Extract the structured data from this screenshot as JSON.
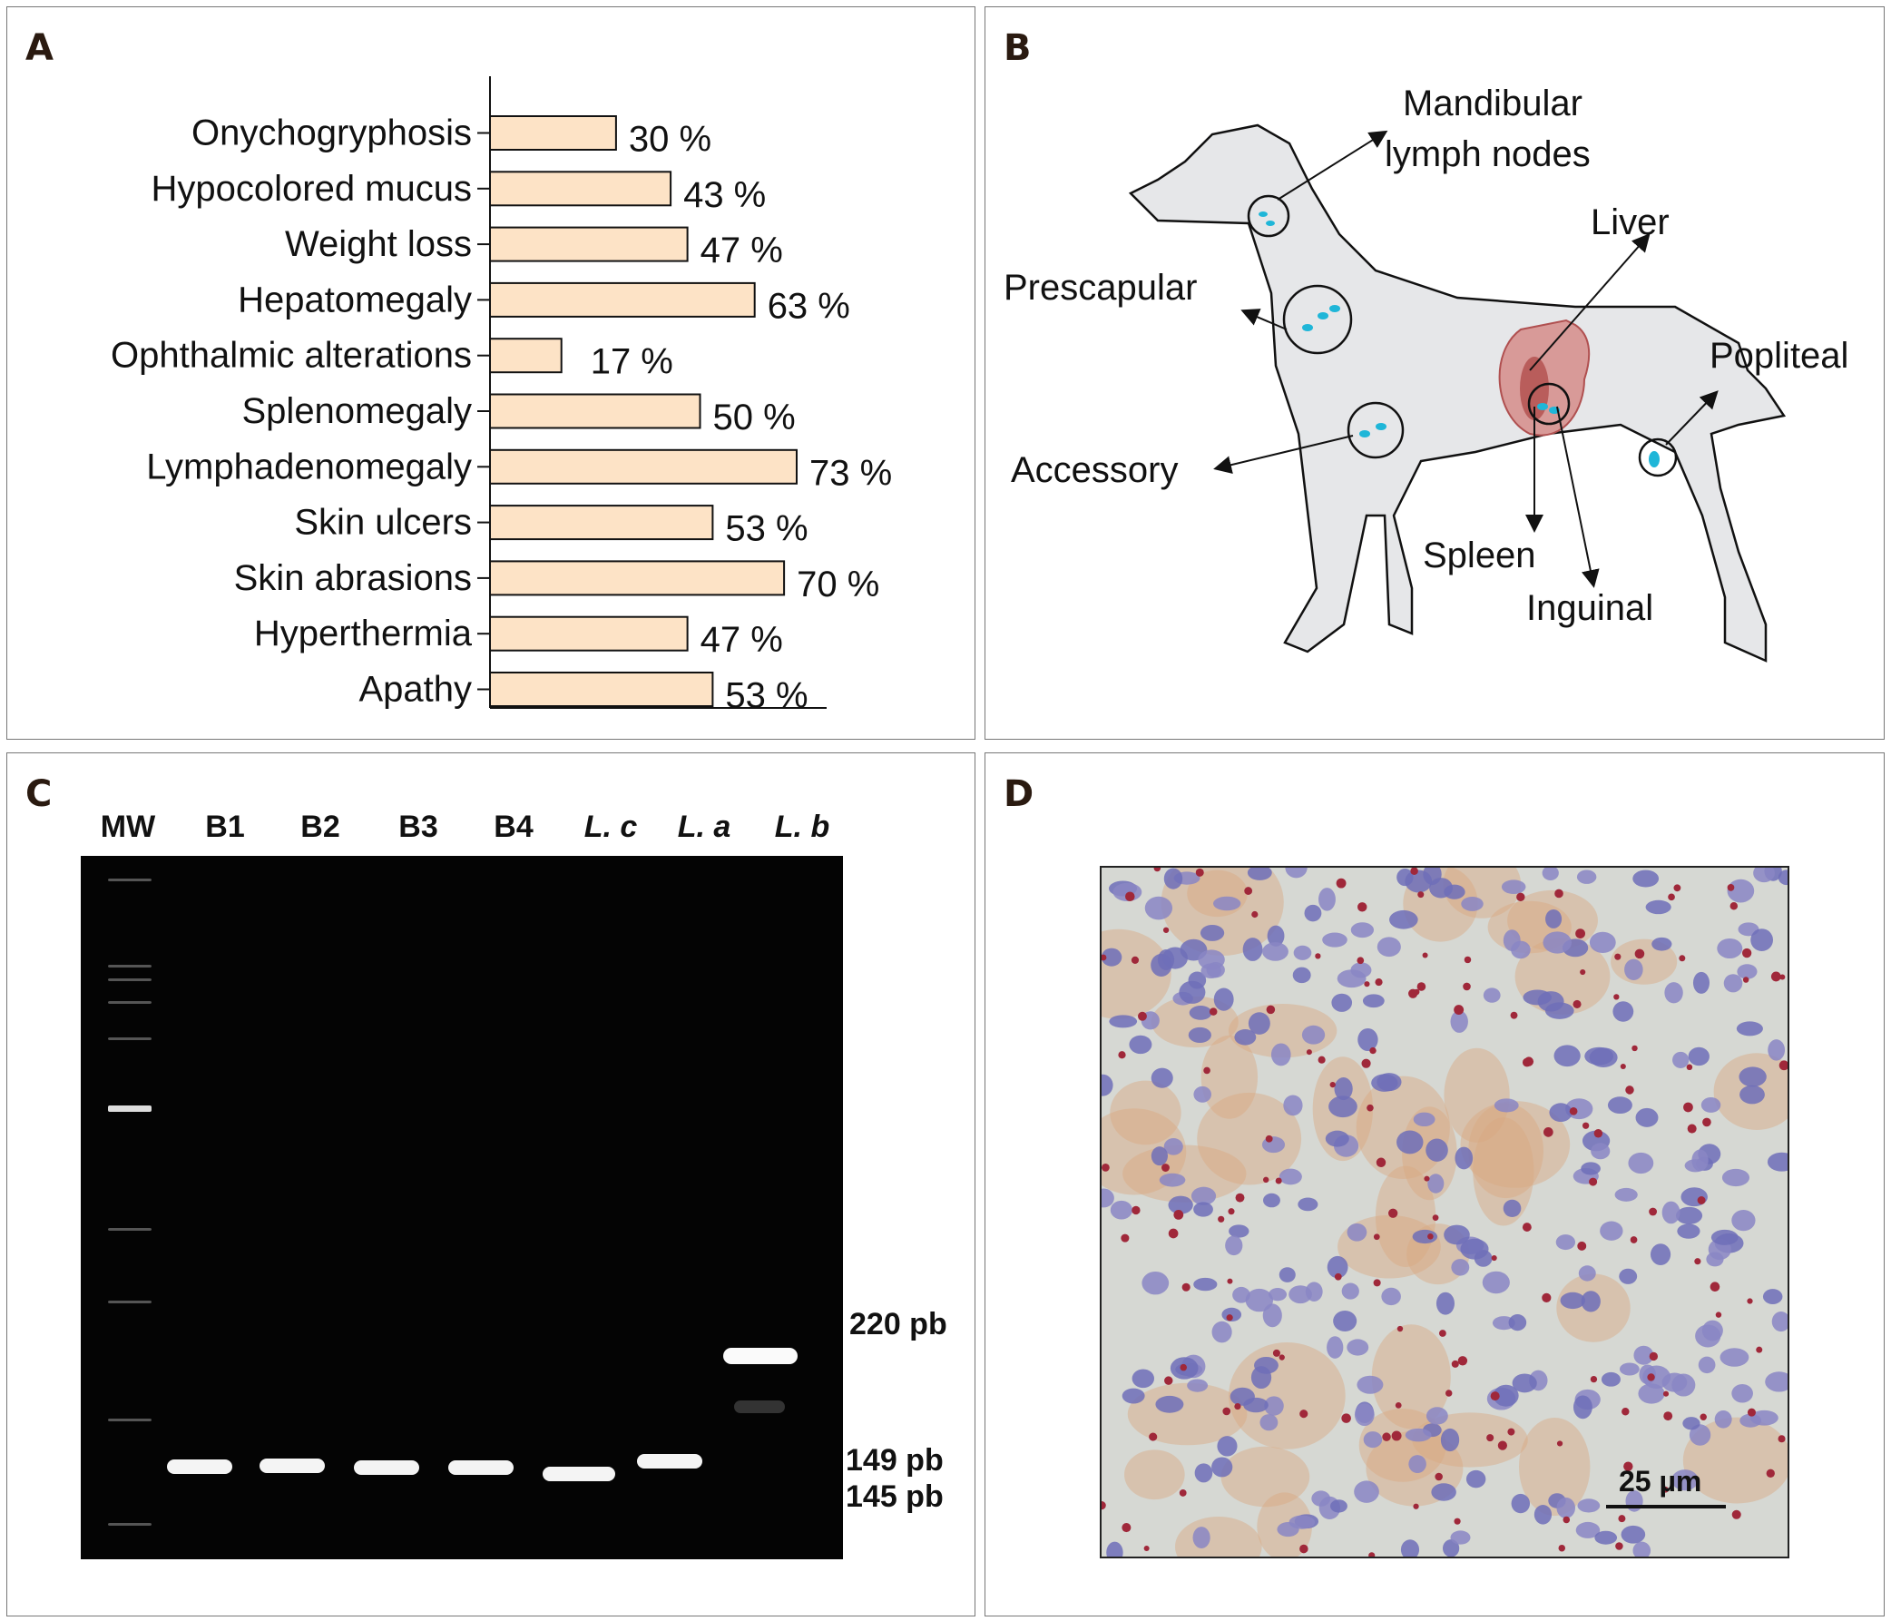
{
  "panels": {
    "a": "A",
    "b": "B",
    "c": "C",
    "d": "D"
  },
  "chart_data": {
    "type": "bar",
    "orientation": "horizontal",
    "categories": [
      "Onychogryphosis",
      "Hypocolored mucus",
      "Weight loss",
      "Hepatomegaly",
      "Ophthalmic alterations",
      "Splenomegaly",
      "Lymphadenomegaly",
      "Skin ulcers",
      "Skin abrasions",
      "Hyperthermia",
      "Apathy"
    ],
    "values": [
      30,
      43,
      47,
      63,
      17,
      50,
      73,
      53,
      70,
      47,
      53
    ],
    "value_labels": [
      "30 %",
      "43 %",
      "47 %",
      "63 %",
      "17 %",
      "50 %",
      "73 %",
      "53 %",
      "70 %",
      "47 %",
      "53 %"
    ],
    "unit": "%",
    "bar_color": "#fde3c6",
    "xlim": [
      0,
      80
    ]
  },
  "diagram": {
    "labels": {
      "mandibular_1": "Mandibular",
      "mandibular_2": "lymph nodes",
      "liver": "Liver",
      "prescapular": "Prescapular",
      "popliteal": "Popliteal",
      "accessory": "Accessory",
      "spleen": "Spleen",
      "inguinal": "Inguinal"
    },
    "colors": {
      "body": "#e6e7e9",
      "organ": "#c8706e",
      "parasite": "#1fb6d8"
    }
  },
  "gel": {
    "lanes": [
      "MW",
      "B1",
      "B2",
      "B3",
      "B4",
      "L. c",
      "L. a",
      "L. b"
    ],
    "band_labels": [
      "220 pb",
      "149 pb",
      "145 pb"
    ]
  },
  "micrograph": {
    "scale_bar": "25 µm"
  }
}
